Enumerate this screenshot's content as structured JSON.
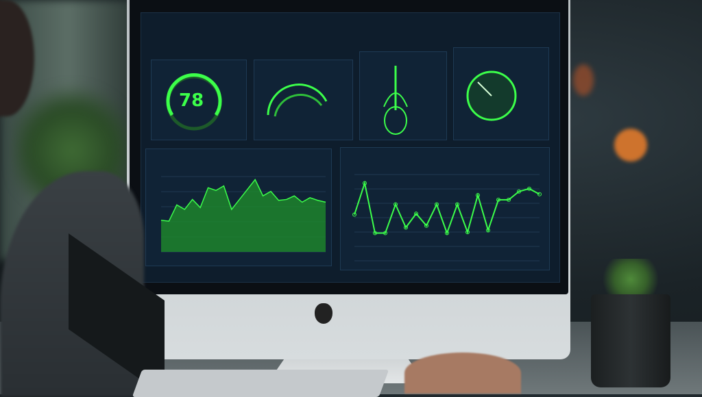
{
  "dashboard": {
    "gauge_value": "78",
    "accent": "#3cff4a",
    "background": "#0e1d2c"
  },
  "chart_data": [
    {
      "type": "area",
      "values": [
        35,
        34,
        52,
        47,
        58,
        49,
        71,
        68,
        73,
        47,
        58,
        69,
        80,
        62,
        67,
        57,
        58,
        62,
        55,
        60,
        57,
        55
      ]
    },
    {
      "type": "line",
      "values": [
        50,
        84,
        30,
        30,
        61,
        36,
        51,
        38,
        61,
        30,
        61,
        31,
        71,
        33,
        66,
        66,
        75,
        78,
        72
      ]
    }
  ]
}
